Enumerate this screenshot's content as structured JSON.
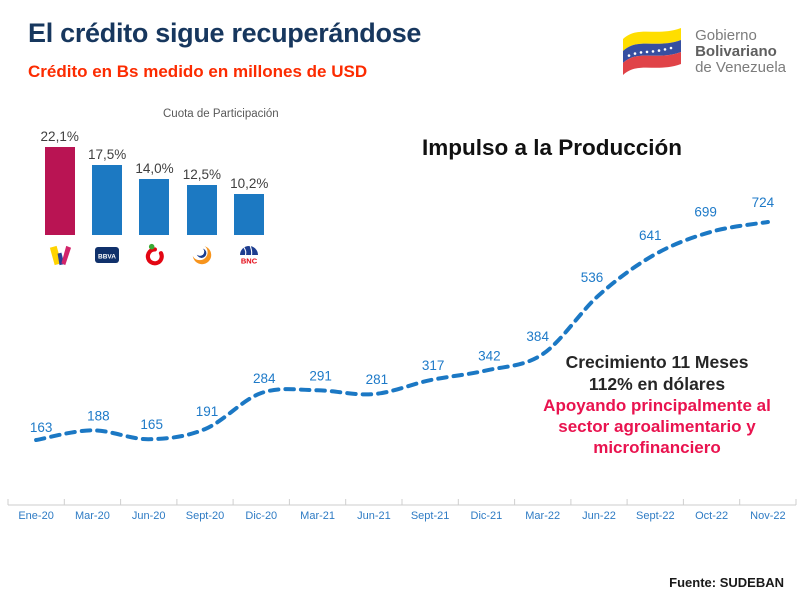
{
  "header": {
    "title": "El crédito sigue recuperándose",
    "subtitle": "Crédito en Bs medido en millones de USD"
  },
  "gov_logo": {
    "flag_icon": "venezuela-flag-icon",
    "line1": "Gobierno",
    "line2": "Bolivariano",
    "line3": "de Venezuela"
  },
  "annotations": {
    "impulso": "Impulso a la Producción",
    "growth_line1": "Crecimiento 11 Meses",
    "growth_line2": "112% en dólares",
    "support_line1": "Apoyando principalmente al",
    "support_line2": "sector agroalimentario y",
    "support_line3": "microfinanciero"
  },
  "footer": {
    "source": "Fuente: SUDEBAN"
  },
  "chart_data": [
    {
      "type": "bar",
      "title": "Cuota de Participación",
      "categories": [
        "Banesco",
        "BBVA Provincial",
        "Banco de Venezuela",
        "Mercantil",
        "BNC"
      ],
      "values": [
        22.1,
        17.5,
        14.0,
        12.5,
        10.2
      ],
      "value_labels": [
        "22,1%",
        "17,5%",
        "14,0%",
        "12,5%",
        "10,2%"
      ],
      "logo_icons": [
        "banesco-logo-icon",
        "bbva-logo-icon",
        "banco-venezuela-logo-icon",
        "mercantil-logo-icon",
        "bnc-logo-icon"
      ],
      "colors": {
        "highlight": "#B91453",
        "default": "#1C79C2"
      },
      "unit": "%",
      "legend": "none",
      "grid": false
    },
    {
      "type": "line",
      "title": "Impulso a la Producción",
      "x": [
        "Ene-20",
        "Mar-20",
        "Jun-20",
        "Sept-20",
        "Dic-20",
        "Mar-21",
        "Jun-21",
        "Sept-21",
        "Dic-21",
        "Mar-22",
        "Jun-22",
        "Sept-22",
        "Oct-22",
        "Nov-22"
      ],
      "values": [
        163,
        188,
        165,
        191,
        284,
        291,
        281,
        317,
        342,
        384,
        536,
        641,
        699,
        724
      ],
      "line_style": "dashed",
      "line_color": "#1B78C4",
      "label_color": "#1E7AC8",
      "ylim": [
        140,
        760
      ],
      "grid": false,
      "legend": "none",
      "xlabel": "",
      "ylabel": "millones de USD"
    }
  ]
}
